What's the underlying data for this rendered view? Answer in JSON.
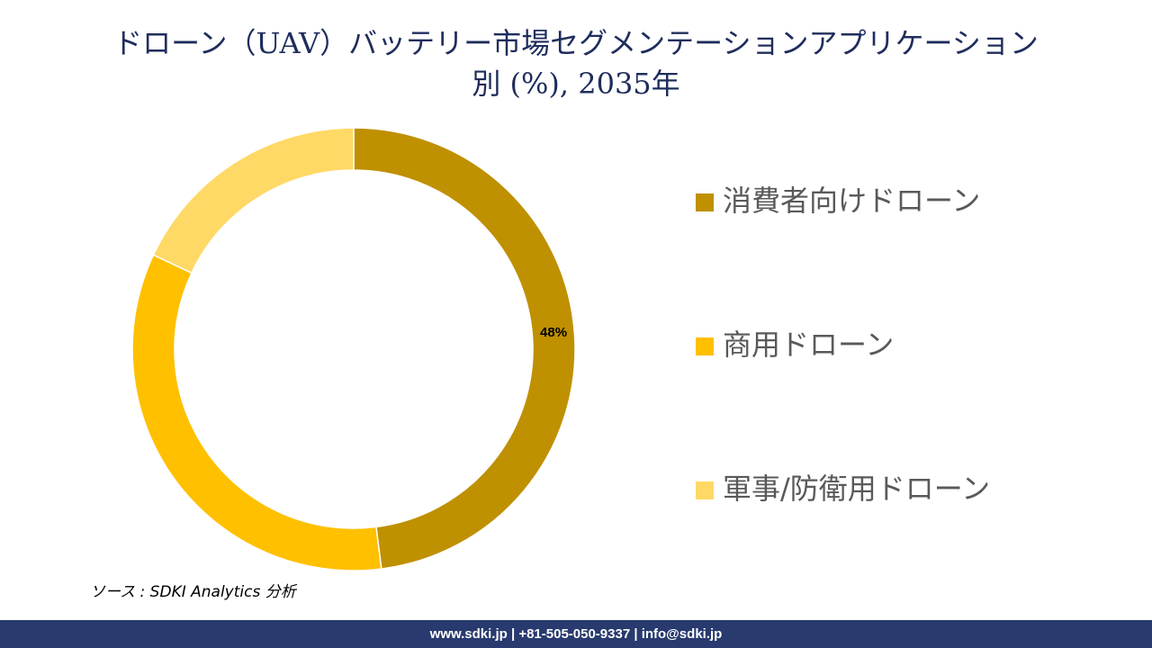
{
  "chart_data": {
    "type": "donut",
    "title": "ドローン（UAV）バッテリー市場セグメンテーションアプリケーション別 (%), 2035年",
    "categories": [
      "消費者向けドローン",
      "商用ドローン",
      "軍事/防衛用ドローン"
    ],
    "values": [
      48,
      34,
      18
    ],
    "value_labels": [
      "48%",
      null,
      null
    ],
    "colors": [
      "#bf9000",
      "#ffc000",
      "#ffd966"
    ],
    "legend": "right"
  },
  "source": "ソース : SDKI Analytics 分析",
  "footer": "www.sdki.jp | +81-505-050-9337 | info@sdki.jp"
}
